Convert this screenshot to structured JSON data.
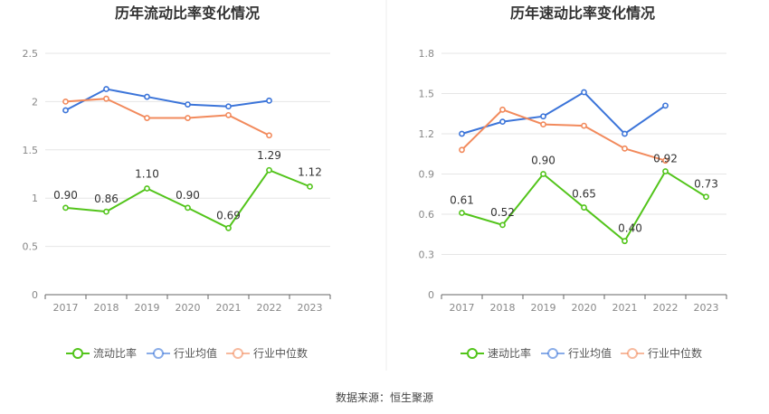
{
  "source_note": "数据来源：恒生聚源",
  "chart_data": [
    {
      "type": "line",
      "title": "历年流动比率变化情况",
      "categories": [
        "2017",
        "2018",
        "2019",
        "2020",
        "2021",
        "2022",
        "2023"
      ],
      "ylim": [
        0,
        2.5
      ],
      "yticks": [
        "0",
        "0.5",
        "1",
        "1.5",
        "2",
        "2.5"
      ],
      "grid": true,
      "legend_position": "bottom",
      "series": [
        {
          "name": "流动比率",
          "color": "#52c41a",
          "values": [
            0.9,
            0.86,
            1.1,
            0.9,
            0.69,
            1.29,
            1.12
          ],
          "labels": [
            "0.90",
            "0.86",
            "1.10",
            "0.90",
            "0.69",
            "1.29",
            "1.12"
          ]
        },
        {
          "name": "行业均值",
          "color": "#3b74d9",
          "values": [
            1.91,
            2.13,
            2.05,
            1.97,
            1.95,
            2.01,
            null
          ]
        },
        {
          "name": "行业中位数",
          "color": "#f28a5c",
          "values": [
            2.0,
            2.03,
            1.83,
            1.83,
            1.86,
            1.65,
            null
          ]
        }
      ]
    },
    {
      "type": "line",
      "title": "历年速动比率变化情况",
      "categories": [
        "2017",
        "2018",
        "2019",
        "2020",
        "2021",
        "2022",
        "2023"
      ],
      "ylim": [
        0,
        1.8
      ],
      "yticks": [
        "0",
        "0.3",
        "0.6",
        "0.9",
        "1.2",
        "1.5",
        "1.8"
      ],
      "grid": true,
      "legend_position": "bottom",
      "series": [
        {
          "name": "速动比率",
          "color": "#52c41a",
          "values": [
            0.61,
            0.52,
            0.9,
            0.65,
            0.4,
            0.92,
            0.73
          ],
          "labels": [
            "0.61",
            "0.52",
            "0.90",
            "0.65",
            "0.40",
            "0.92",
            "0.73"
          ]
        },
        {
          "name": "行业均值",
          "color": "#3b74d9",
          "values": [
            1.2,
            1.29,
            1.33,
            1.51,
            1.2,
            1.41,
            null
          ]
        },
        {
          "name": "行业中位数",
          "color": "#f28a5c",
          "values": [
            1.08,
            1.38,
            1.27,
            1.26,
            1.09,
            1.0,
            null
          ]
        }
      ]
    }
  ]
}
